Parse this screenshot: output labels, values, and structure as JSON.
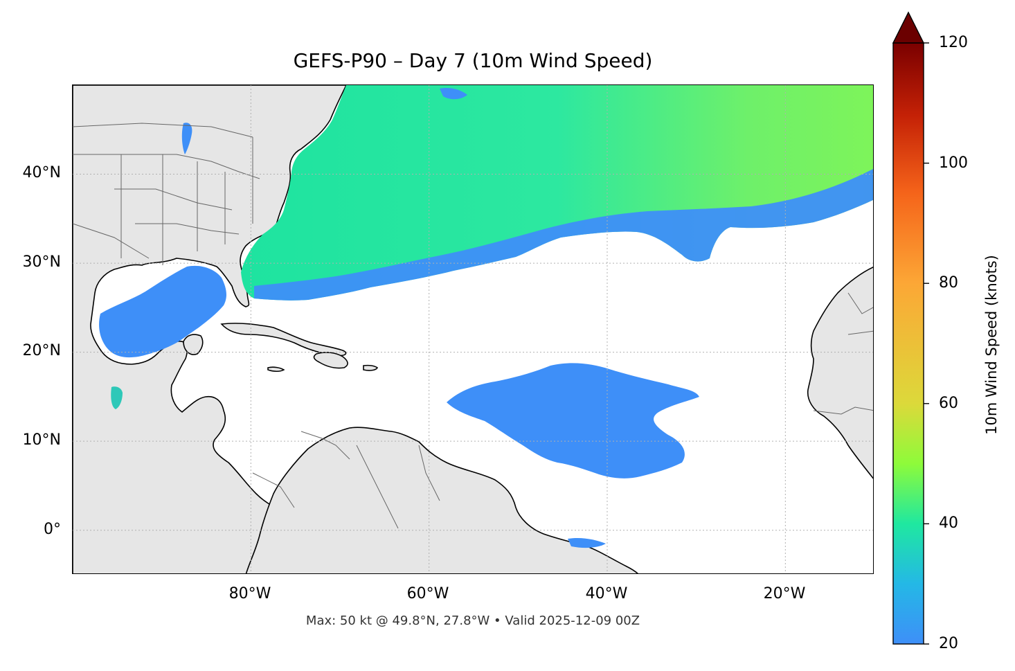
{
  "title": "GEFS-P90 – Day 7 (10m Wind Speed)",
  "footer": "Max: 50 kt @ 49.8°N, 27.8°W • Valid 2025-12-09 00Z",
  "lat_ticks": [
    {
      "label": "40°N",
      "value": 40
    },
    {
      "label": "30°N",
      "value": 30
    },
    {
      "label": "20°N",
      "value": 20
    },
    {
      "label": "10°N",
      "value": 10
    },
    {
      "label": "0°",
      "value": 0
    }
  ],
  "lon_ticks": [
    {
      "label": "80°W",
      "value": -80
    },
    {
      "label": "60°W",
      "value": -60
    },
    {
      "label": "40°W",
      "value": -40
    },
    {
      "label": "20°W",
      "value": -20
    }
  ],
  "map_extent": {
    "lon": [
      -100,
      -10
    ],
    "lat": [
      -5,
      50
    ]
  },
  "colorbar": {
    "label": "10m Wind Speed (knots)",
    "range": [
      20,
      120
    ],
    "extend": "max",
    "ticks": [
      {
        "label": "20",
        "value": 20
      },
      {
        "label": "40",
        "value": 40
      },
      {
        "label": "60",
        "value": 60
      },
      {
        "label": "80",
        "value": 80
      },
      {
        "label": "100",
        "value": 100
      },
      {
        "label": "120",
        "value": 120
      }
    ],
    "colors": [
      "#3e8ff8",
      "#1fc8d8",
      "#1ee89a",
      "#8efb3a",
      "#dcd93a",
      "#fca736",
      "#f5641a",
      "#d12d06",
      "#9b0f02",
      "#6b0000"
    ]
  },
  "colors": {
    "land": "#e6e6e6",
    "coast": "#000000",
    "borders": "#666666",
    "grid": "#b0b0b0"
  }
}
